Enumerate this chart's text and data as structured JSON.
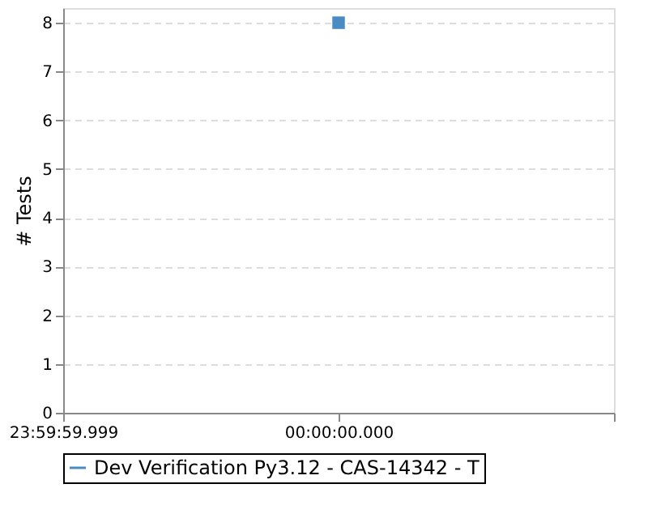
{
  "chart_data": {
    "type": "line",
    "ylabel": "# Tests",
    "categories": [
      "23:59:59.999",
      "00:00:00.000",
      null
    ],
    "series": [
      {
        "name": "Dev Verification Py3.12 - CAS-14342 - T",
        "color": "#4a8bc4",
        "values": [
          null,
          8,
          null
        ]
      }
    ],
    "ylim": [
      0,
      8.3
    ],
    "yticks": [
      0,
      1,
      2,
      3,
      4,
      5,
      6,
      7,
      8
    ],
    "grid": "y",
    "legend": "bottom",
    "marker": "square"
  }
}
